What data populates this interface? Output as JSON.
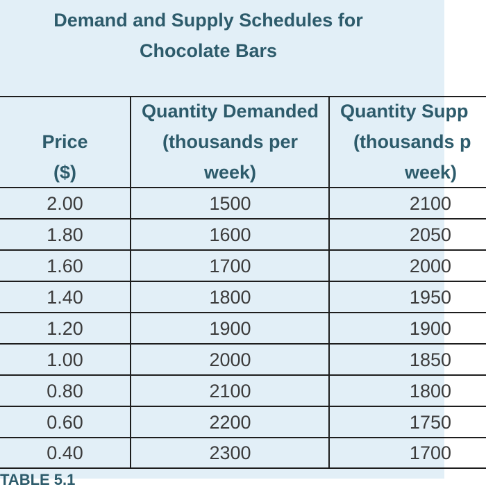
{
  "title_line1": "Demand and Supply Schedules for",
  "title_line2": "Chocolate Bars",
  "headers": {
    "price": [
      "Price",
      "($)"
    ],
    "demanded": [
      "Quantity Demanded",
      "(thousands per",
      "week)"
    ],
    "supplied": [
      "Quantity Supp",
      "(thousands p",
      "week)"
    ]
  },
  "rows": [
    {
      "price": "2.00",
      "demanded": "1500",
      "supplied": "2100"
    },
    {
      "price": "1.80",
      "demanded": "1600",
      "supplied": "2050"
    },
    {
      "price": "1.60",
      "demanded": "1700",
      "supplied": "2000"
    },
    {
      "price": "1.40",
      "demanded": "1800",
      "supplied": "1950"
    },
    {
      "price": "1.20",
      "demanded": "1900",
      "supplied": "1900"
    },
    {
      "price": "1.00",
      "demanded": "2000",
      "supplied": "1850"
    },
    {
      "price": "0.80",
      "demanded": "2100",
      "supplied": "1800"
    },
    {
      "price": "0.60",
      "demanded": "2200",
      "supplied": "1750"
    },
    {
      "price": "0.40",
      "demanded": "2300",
      "supplied": "1700"
    }
  ],
  "caption": "TABLE 5.1",
  "colors": {
    "heading": "#2d5b6b",
    "panel": "#e2eff7",
    "rule": "#1d1d1d",
    "text": "#3b3b3b"
  }
}
